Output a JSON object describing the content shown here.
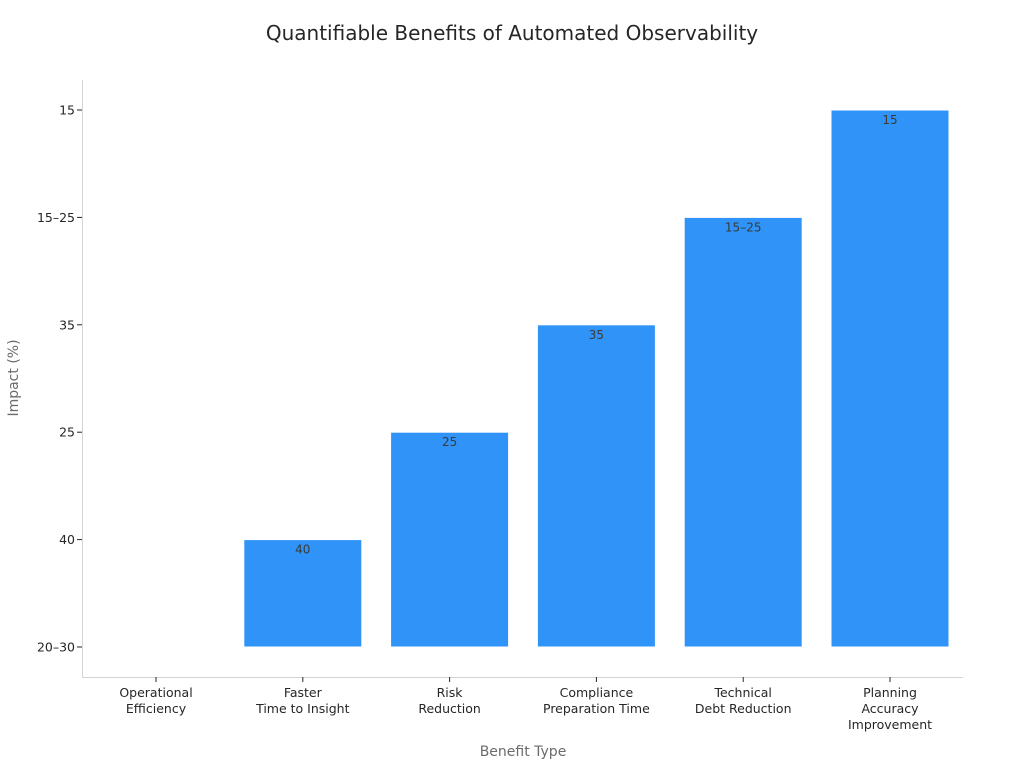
{
  "chart_data": {
    "type": "bar",
    "title": "Quantifiable Benefits of Automated Observability",
    "xlabel": "Benefit Type",
    "ylabel": "Impact (%)",
    "y_axis_type": "categorical",
    "y_categories": [
      "20–30",
      "40",
      "25",
      "35",
      "15–25",
      "15"
    ],
    "categories": [
      [
        "Operational",
        "Efficiency"
      ],
      [
        "Faster",
        "Time to Insight"
      ],
      [
        "Risk",
        "Reduction"
      ],
      [
        "Compliance",
        "Preparation Time"
      ],
      [
        "Technical",
        "Debt Reduction"
      ],
      [
        "Planning",
        "Accuracy",
        "Improvement"
      ]
    ],
    "values": [
      "20–30",
      "40",
      "25",
      "35",
      "15–25",
      "15"
    ],
    "data_labels": [
      "",
      "40",
      "25",
      "35",
      "15–25",
      "15"
    ],
    "bar_color": "#2f93f7",
    "grid": false,
    "legend": "none"
  }
}
